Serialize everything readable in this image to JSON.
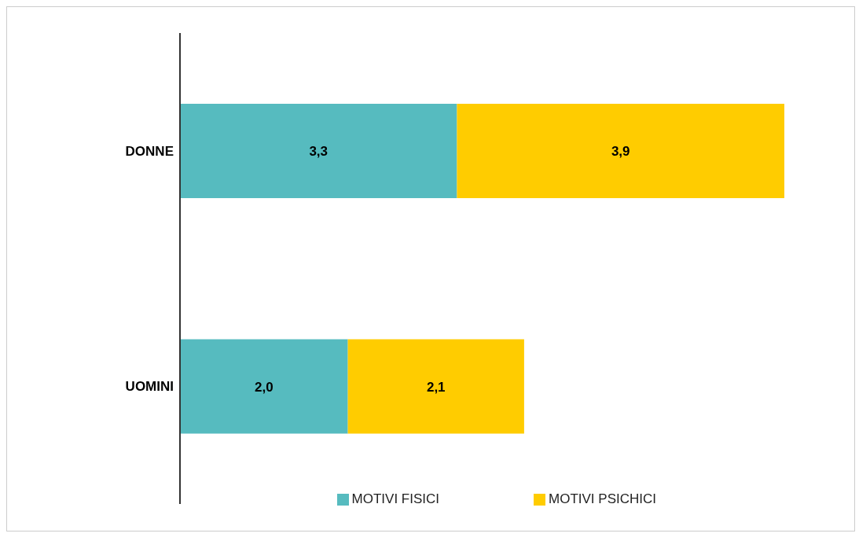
{
  "chart_data": {
    "type": "bar",
    "orientation": "horizontal",
    "stacked": true,
    "categories": [
      "DONNE",
      "UOMINI"
    ],
    "series": [
      {
        "name": "MOTIVI FISICI",
        "color": "#56bbbf",
        "values": [
          3.3,
          2.0
        ],
        "value_labels": [
          "3,3",
          "2,0"
        ]
      },
      {
        "name": "MOTIVI PSICHICI",
        "color": "#ffcc00",
        "values": [
          3.9,
          2.1
        ],
        "value_labels": [
          "3,9",
          "2,1"
        ]
      }
    ],
    "legend": "bottom right"
  }
}
